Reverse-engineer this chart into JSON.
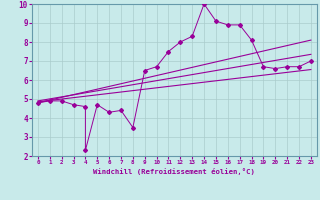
{
  "xlabel": "Windchill (Refroidissement éolien,°C)",
  "bg_color": "#c8eaea",
  "line_color": "#990099",
  "grid_color": "#aacccc",
  "spine_color": "#6699aa",
  "xlim": [
    -0.5,
    23.5
  ],
  "ylim": [
    2,
    10
  ],
  "xticks": [
    0,
    1,
    2,
    3,
    4,
    5,
    6,
    7,
    8,
    9,
    10,
    11,
    12,
    13,
    14,
    15,
    16,
    17,
    18,
    19,
    20,
    21,
    22,
    23
  ],
  "yticks": [
    2,
    3,
    4,
    5,
    6,
    7,
    8,
    9,
    10
  ],
  "line1_x": [
    0,
    1,
    2,
    3,
    4,
    4,
    5,
    6,
    7,
    8,
    9,
    10,
    11,
    12,
    13,
    14,
    15,
    16,
    17,
    18,
    19,
    20,
    21,
    22,
    23
  ],
  "line1_y": [
    4.8,
    4.9,
    4.9,
    4.7,
    4.6,
    2.3,
    4.7,
    4.3,
    4.4,
    3.5,
    6.5,
    6.7,
    7.5,
    8.0,
    8.3,
    10.0,
    9.1,
    8.9,
    8.9,
    8.1,
    6.7,
    6.6,
    6.7,
    6.7,
    7.0
  ],
  "line2_x": [
    0,
    23
  ],
  "line2_y": [
    4.8,
    8.1
  ],
  "line3_x": [
    0,
    23
  ],
  "line3_y": [
    4.9,
    7.35
  ],
  "line4_x": [
    0,
    23
  ],
  "line4_y": [
    4.85,
    6.55
  ]
}
